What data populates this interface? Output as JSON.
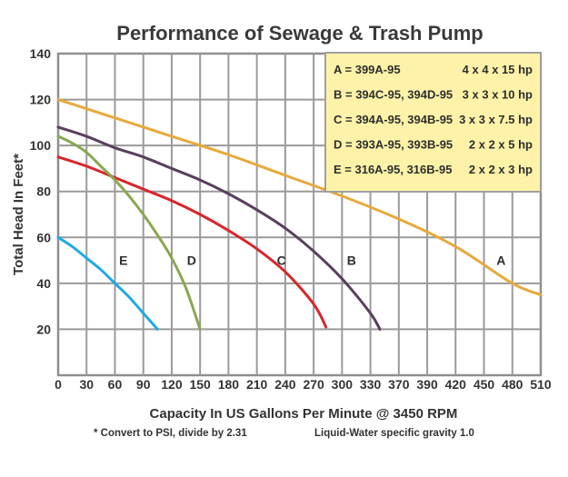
{
  "chart_data": {
    "type": "line",
    "title": "Performance of Sewage & Trash Pump",
    "xlabel": "Capacity In US Gallons Per Minute @ 3450 RPM",
    "ylabel": "Total Head In Feet*",
    "footnotes": [
      "* Convert to PSI, divide by 2.31",
      "Liquid-Water specific gravity 1.0"
    ],
    "x_tick_labels": [
      "0",
      "30",
      "60",
      "90",
      "120",
      "150",
      "180",
      "210",
      "240",
      "270",
      "300",
      "330",
      "370",
      "390",
      "420",
      "450",
      "480",
      "510"
    ],
    "y_tick_labels": [
      "20",
      "40",
      "60",
      "80",
      "100",
      "120",
      "140"
    ],
    "xlim": [
      0,
      510
    ],
    "ylim": [
      0,
      140
    ],
    "grid": true,
    "legend_position": "top-right",
    "legend": [
      {
        "key": "A",
        "models": "A = 399A-95",
        "spec": "4 x 4 x 15 hp"
      },
      {
        "key": "B",
        "models": "B = 394C-95, 394D-95",
        "spec": "3 x 3 x 10 hp"
      },
      {
        "key": "C",
        "models": "C = 394A-95, 394B-95",
        "spec": "3 x 3 x 7.5 hp"
      },
      {
        "key": "D",
        "models": "D = 393A-95, 393B-95",
        "spec": "2 x 2 x 5 hp"
      },
      {
        "key": "E",
        "models": "E = 316A-95, 316B-95",
        "spec": "2 x 2 x 3 hp"
      }
    ],
    "series": [
      {
        "name": "A",
        "color": "#e8a93a",
        "label_at": [
          468,
          48
        ],
        "x": [
          0,
          60,
          120,
          180,
          240,
          300,
          360,
          420,
          480,
          510
        ],
        "y": [
          120,
          112,
          104,
          96,
          87,
          78,
          68,
          56,
          40,
          35
        ]
      },
      {
        "name": "B",
        "color": "#5a3f5e",
        "label_at": [
          310,
          48
        ],
        "x": [
          0,
          30,
          60,
          90,
          120,
          150,
          180,
          210,
          240,
          270,
          300,
          330,
          340
        ],
        "y": [
          108,
          104,
          99,
          95,
          90,
          85,
          79,
          72,
          64,
          54,
          42,
          27,
          20
        ]
      },
      {
        "name": "C",
        "color": "#d8262b",
        "label_at": [
          236,
          48
        ],
        "x": [
          0,
          30,
          60,
          90,
          120,
          150,
          180,
          210,
          240,
          270,
          283
        ],
        "y": [
          95,
          91,
          86,
          81,
          76,
          70,
          63,
          55,
          45,
          31,
          21
        ]
      },
      {
        "name": "D",
        "color": "#89a850",
        "label_at": [
          141,
          48
        ],
        "x": [
          0,
          15,
          30,
          45,
          60,
          75,
          90,
          105,
          120,
          135,
          150
        ],
        "y": [
          104,
          101,
          97,
          91,
          85,
          78,
          70,
          61,
          51,
          38,
          20
        ]
      },
      {
        "name": "E",
        "color": "#1eaae6",
        "label_at": [
          69,
          48
        ],
        "x": [
          0,
          15,
          30,
          45,
          60,
          75,
          90,
          105
        ],
        "y": [
          60,
          56,
          51,
          46,
          40,
          34,
          27,
          20
        ]
      }
    ]
  }
}
